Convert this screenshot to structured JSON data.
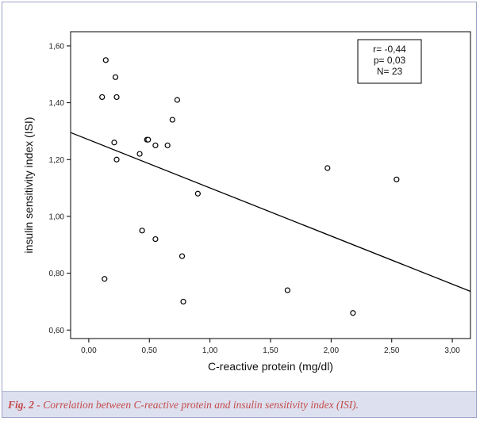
{
  "chart_data": {
    "type": "scatter",
    "xlabel": "C-reactive protein (mg/dl)",
    "ylabel": "insulin sensitivity index (ISI)",
    "xlim": [
      -0.15,
      3.15
    ],
    "ylim": [
      0.57,
      1.65
    ],
    "xticks": [
      0.0,
      0.5,
      1.0,
      1.5,
      2.0,
      2.5,
      3.0
    ],
    "xtick_labels": [
      "0,00",
      "0,50",
      "1,00",
      "1,50",
      "2,00",
      "2,50",
      "3,00"
    ],
    "yticks": [
      0.6,
      0.8,
      1.0,
      1.2,
      1.4,
      1.6
    ],
    "ytick_labels": [
      "0,60",
      "0,80",
      "1,00",
      "1,20",
      "1,40",
      "1,60"
    ],
    "grid": false,
    "points": [
      {
        "x": 0.14,
        "y": 1.55
      },
      {
        "x": 0.22,
        "y": 1.49
      },
      {
        "x": 0.11,
        "y": 1.42
      },
      {
        "x": 0.23,
        "y": 1.42
      },
      {
        "x": 0.73,
        "y": 1.41
      },
      {
        "x": 0.69,
        "y": 1.34
      },
      {
        "x": 0.48,
        "y": 1.27
      },
      {
        "x": 0.49,
        "y": 1.27
      },
      {
        "x": 0.21,
        "y": 1.26
      },
      {
        "x": 0.55,
        "y": 1.25
      },
      {
        "x": 0.65,
        "y": 1.25
      },
      {
        "x": 0.42,
        "y": 1.22
      },
      {
        "x": 0.23,
        "y": 1.2
      },
      {
        "x": 1.97,
        "y": 1.17
      },
      {
        "x": 2.54,
        "y": 1.13
      },
      {
        "x": 0.9,
        "y": 1.08
      },
      {
        "x": 0.44,
        "y": 0.95
      },
      {
        "x": 0.55,
        "y": 0.92
      },
      {
        "x": 0.77,
        "y": 0.86
      },
      {
        "x": 0.13,
        "y": 0.78
      },
      {
        "x": 1.64,
        "y": 0.74
      },
      {
        "x": 0.78,
        "y": 0.7
      },
      {
        "x": 2.18,
        "y": 0.66
      }
    ],
    "fit_line": {
      "x": [
        -0.15,
        3.15
      ],
      "y": [
        1.295,
        0.736
      ]
    },
    "annotation": [
      "r= -0,44",
      "p= 0,03",
      "N= 23"
    ],
    "line_color": "#000000",
    "marker": "open-circle"
  },
  "caption": {
    "label": "Fig. 2 -",
    "text": " Correlation between C-reactive protein and insulin sensitivity index (ISI)."
  },
  "colors": {
    "frame_border": "#9fa3c8",
    "caption_background": "#dde0ef",
    "caption_text": "#c44a4a"
  }
}
